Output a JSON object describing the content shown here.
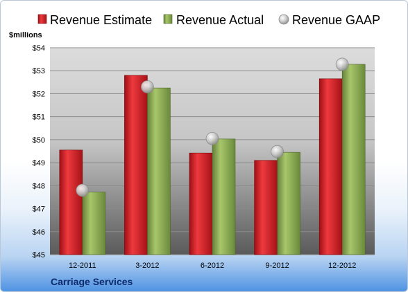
{
  "chart_data": {
    "type": "bar",
    "title": "",
    "ylabel": "$millions",
    "footer": "Carriage Services",
    "categories": [
      "12-2011",
      "3-2012",
      "6-2012",
      "9-2012",
      "12-2012"
    ],
    "series": [
      {
        "name": "Revenue Estimate",
        "kind": "bar",
        "color": "#d42027",
        "values": [
          49.55,
          52.8,
          49.42,
          49.1,
          52.65
        ]
      },
      {
        "name": "Revenue Actual",
        "kind": "bar",
        "color": "#8fb04e",
        "values": [
          47.72,
          52.25,
          50.03,
          49.45,
          53.28
        ]
      },
      {
        "name": "Revenue GAAP",
        "kind": "marker",
        "color": "#c8c8c8",
        "values": [
          47.8,
          52.3,
          50.05,
          49.48,
          53.28
        ]
      }
    ],
    "ylim": [
      45,
      54
    ],
    "yticks": [
      "$45",
      "$46",
      "$47",
      "$48",
      "$49",
      "$50",
      "$51",
      "$52",
      "$53",
      "$54"
    ],
    "grid": true,
    "legend_position": "top"
  }
}
